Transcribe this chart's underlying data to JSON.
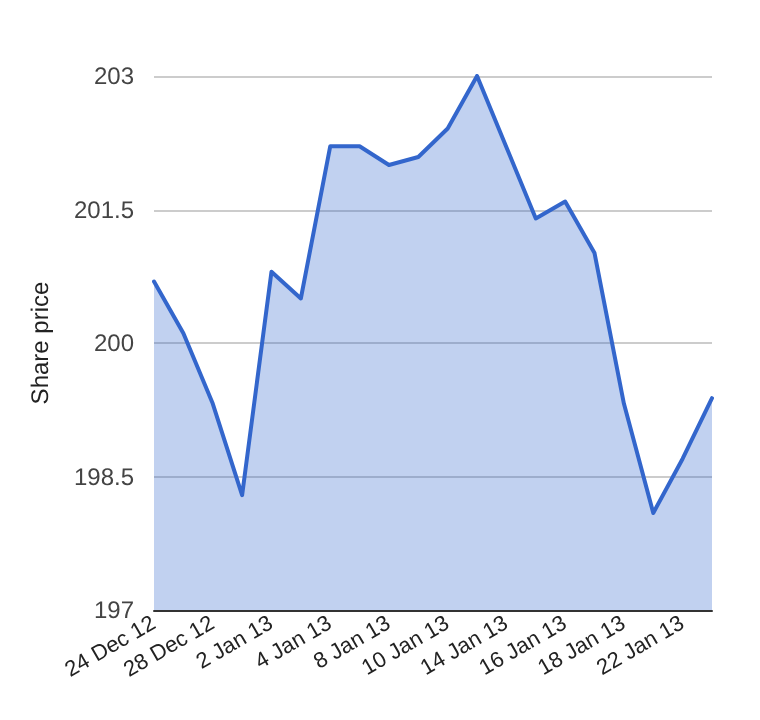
{
  "chart_data": {
    "type": "area",
    "ylabel": "Share price",
    "categories": [
      "24 Dec 12",
      null,
      "28 Dec 12",
      null,
      "2 Jan 13",
      null,
      "4 Jan 13",
      null,
      "8 Jan 13",
      null,
      "10 Jan 13",
      null,
      "14 Jan 13",
      null,
      "16 Jan 13",
      null,
      "18 Jan 13",
      null,
      "22 Jan 13",
      null
    ],
    "series": [
      {
        "color": "#3366cc",
        "values": [
          200.69,
          200.11,
          199.32,
          198.29,
          200.8,
          200.5,
          202.21,
          202.21,
          202.0,
          202.09,
          202.41,
          203.0,
          202.2,
          201.4,
          201.59,
          201.01,
          199.32,
          198.09,
          198.7,
          199.38
        ]
      }
    ],
    "ylim": [
      197,
      203
    ],
    "yticks": [
      197,
      198.5,
      200,
      201.5,
      203
    ],
    "grid": "y",
    "marker": "none",
    "line_style": "solid"
  }
}
